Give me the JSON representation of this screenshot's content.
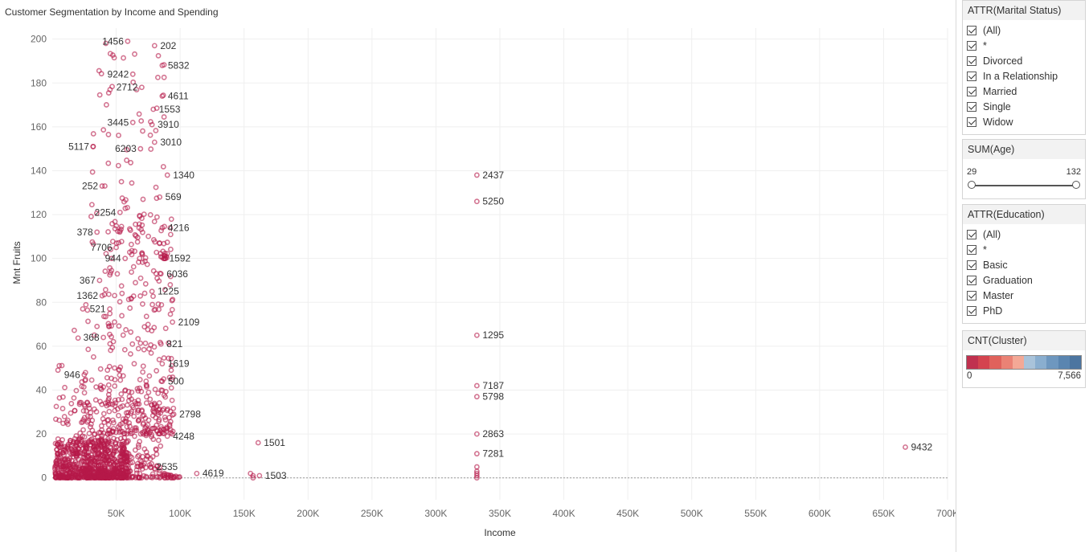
{
  "page": {
    "title": "Customer Segmentation by Income and Spending"
  },
  "filters": {
    "marital": {
      "header": "ATTR(Marital Status)",
      "items": [
        "(All)",
        "*",
        "Divorced",
        "In a Relationship",
        "Married",
        "Single",
        "Widow"
      ]
    },
    "age": {
      "header": "SUM(Age)",
      "min": "29",
      "max": "132",
      "range": [
        29,
        132
      ]
    },
    "education": {
      "header": "ATTR(Education)",
      "items": [
        "(All)",
        "*",
        "Basic",
        "Graduation",
        "Master",
        "PhD"
      ]
    },
    "cluster": {
      "header": "CNT(Cluster)",
      "min_label": "0",
      "max_label": "7,566",
      "colors": [
        "#c0314f",
        "#d4444f",
        "#e0625c",
        "#ea8275",
        "#f3a896",
        "#a9c3da",
        "#8aaecf",
        "#6e97bf",
        "#5a85b0",
        "#4c75a0"
      ]
    }
  },
  "chart_data": {
    "type": "scatter",
    "title": "Customer Segmentation by Income and Spending",
    "xlabel": "Income",
    "ylabel": "Mnt Fruits",
    "xlim": [
      0,
      700000
    ],
    "ylim": [
      -10,
      205
    ],
    "x_ticks": [
      50000,
      100000,
      150000,
      200000,
      250000,
      300000,
      350000,
      400000,
      450000,
      500000,
      550000,
      600000,
      650000,
      700000
    ],
    "x_tick_labels": [
      "50K",
      "100K",
      "150K",
      "200K",
      "250K",
      "300K",
      "350K",
      "400K",
      "450K",
      "500K",
      "550K",
      "600K",
      "650K",
      "700K"
    ],
    "y_ticks": [
      0,
      20,
      40,
      60,
      80,
      100,
      120,
      140,
      160,
      180,
      200
    ],
    "y_tick_labels": [
      "0",
      "20",
      "40",
      "60",
      "80",
      "100",
      "120",
      "140",
      "160",
      "180",
      "200"
    ],
    "grid": true,
    "marker_color": "#b5194a",
    "labeled_points": [
      {
        "label": "1456",
        "x": 59000,
        "y": 199
      },
      {
        "label": "202",
        "x": 80000,
        "y": 197
      },
      {
        "label": "5832",
        "x": 86000,
        "y": 188
      },
      {
        "label": "9242",
        "x": 63000,
        "y": 184
      },
      {
        "label": "2712",
        "x": 70000,
        "y": 178
      },
      {
        "label": "4611",
        "x": 86000,
        "y": 174
      },
      {
        "label": "1553",
        "x": 79000,
        "y": 168
      },
      {
        "label": "3445",
        "x": 63000,
        "y": 162
      },
      {
        "label": "3910",
        "x": 78000,
        "y": 161
      },
      {
        "label": "3010",
        "x": 80000,
        "y": 153
      },
      {
        "label": "6203",
        "x": 69000,
        "y": 150
      },
      {
        "label": "5117",
        "x": 32000,
        "y": 151
      },
      {
        "label": "1340",
        "x": 90000,
        "y": 138
      },
      {
        "label": "2437",
        "x": 332000,
        "y": 138
      },
      {
        "label": "252",
        "x": 39000,
        "y": 133
      },
      {
        "label": "569",
        "x": 84000,
        "y": 128
      },
      {
        "label": "5250",
        "x": 332000,
        "y": 126
      },
      {
        "label": "2254",
        "x": 53000,
        "y": 121
      },
      {
        "label": "4216",
        "x": 86000,
        "y": 114
      },
      {
        "label": "378",
        "x": 35000,
        "y": 112
      },
      {
        "label": "7706",
        "x": 50000,
        "y": 105
      },
      {
        "label": "944",
        "x": 57000,
        "y": 100
      },
      {
        "label": "1592",
        "x": 87000,
        "y": 100
      },
      {
        "label": "367",
        "x": 37000,
        "y": 90
      },
      {
        "label": "6036",
        "x": 85000,
        "y": 93
      },
      {
        "label": "1362",
        "x": 39000,
        "y": 83
      },
      {
        "label": "1225",
        "x": 78000,
        "y": 85
      },
      {
        "label": "521",
        "x": 45000,
        "y": 77
      },
      {
        "label": "2109",
        "x": 94000,
        "y": 71
      },
      {
        "label": "368",
        "x": 40000,
        "y": 64
      },
      {
        "label": "1295",
        "x": 332000,
        "y": 65
      },
      {
        "label": "821",
        "x": 85000,
        "y": 61
      },
      {
        "label": "946",
        "x": 25000,
        "y": 47
      },
      {
        "label": "1619",
        "x": 86000,
        "y": 52
      },
      {
        "label": "500",
        "x": 86000,
        "y": 44
      },
      {
        "label": "7187",
        "x": 332000,
        "y": 42
      },
      {
        "label": "5798",
        "x": 332000,
        "y": 37
      },
      {
        "label": "2798",
        "x": 95000,
        "y": 29
      },
      {
        "label": "2863",
        "x": 332000,
        "y": 20
      },
      {
        "label": "4248",
        "x": 90000,
        "y": 19
      },
      {
        "label": "1501",
        "x": 161000,
        "y": 16
      },
      {
        "label": "7281",
        "x": 332000,
        "y": 11
      },
      {
        "label": "9432",
        "x": 667000,
        "y": 14
      },
      {
        "label": "2535",
        "x": 77000,
        "y": 5
      },
      {
        "label": "4619",
        "x": 113000,
        "y": 2
      },
      {
        "label": "1503",
        "x": 162000,
        "y": 1
      }
    ],
    "point_clouds": [
      {
        "x_range": [
          2000,
          60000
        ],
        "y_range": [
          0,
          18
        ],
        "count": 700
      },
      {
        "x_range": [
          20000,
          85000
        ],
        "y_range": [
          0,
          45
        ],
        "count": 320
      },
      {
        "x_range": [
          40000,
          95000
        ],
        "y_range": [
          20,
          120
        ],
        "count": 280
      },
      {
        "x_range": [
          30000,
          90000
        ],
        "y_range": [
          100,
          200
        ],
        "count": 90
      },
      {
        "x_range": [
          2000,
          40000
        ],
        "y_range": [
          15,
          80
        ],
        "count": 60
      },
      {
        "x_range": [
          85000,
          100000
        ],
        "y_range": [
          0,
          2
        ],
        "count": 25
      }
    ],
    "outlier_points": [
      {
        "x": 155000,
        "y": 2
      },
      {
        "x": 157000,
        "y": 1
      },
      {
        "x": 157000,
        "y": 0
      },
      {
        "x": 332000,
        "y": 0
      },
      {
        "x": 332000,
        "y": 1
      },
      {
        "x": 332000,
        "y": 2
      },
      {
        "x": 332000,
        "y": 3
      },
      {
        "x": 332000,
        "y": 5
      }
    ]
  }
}
